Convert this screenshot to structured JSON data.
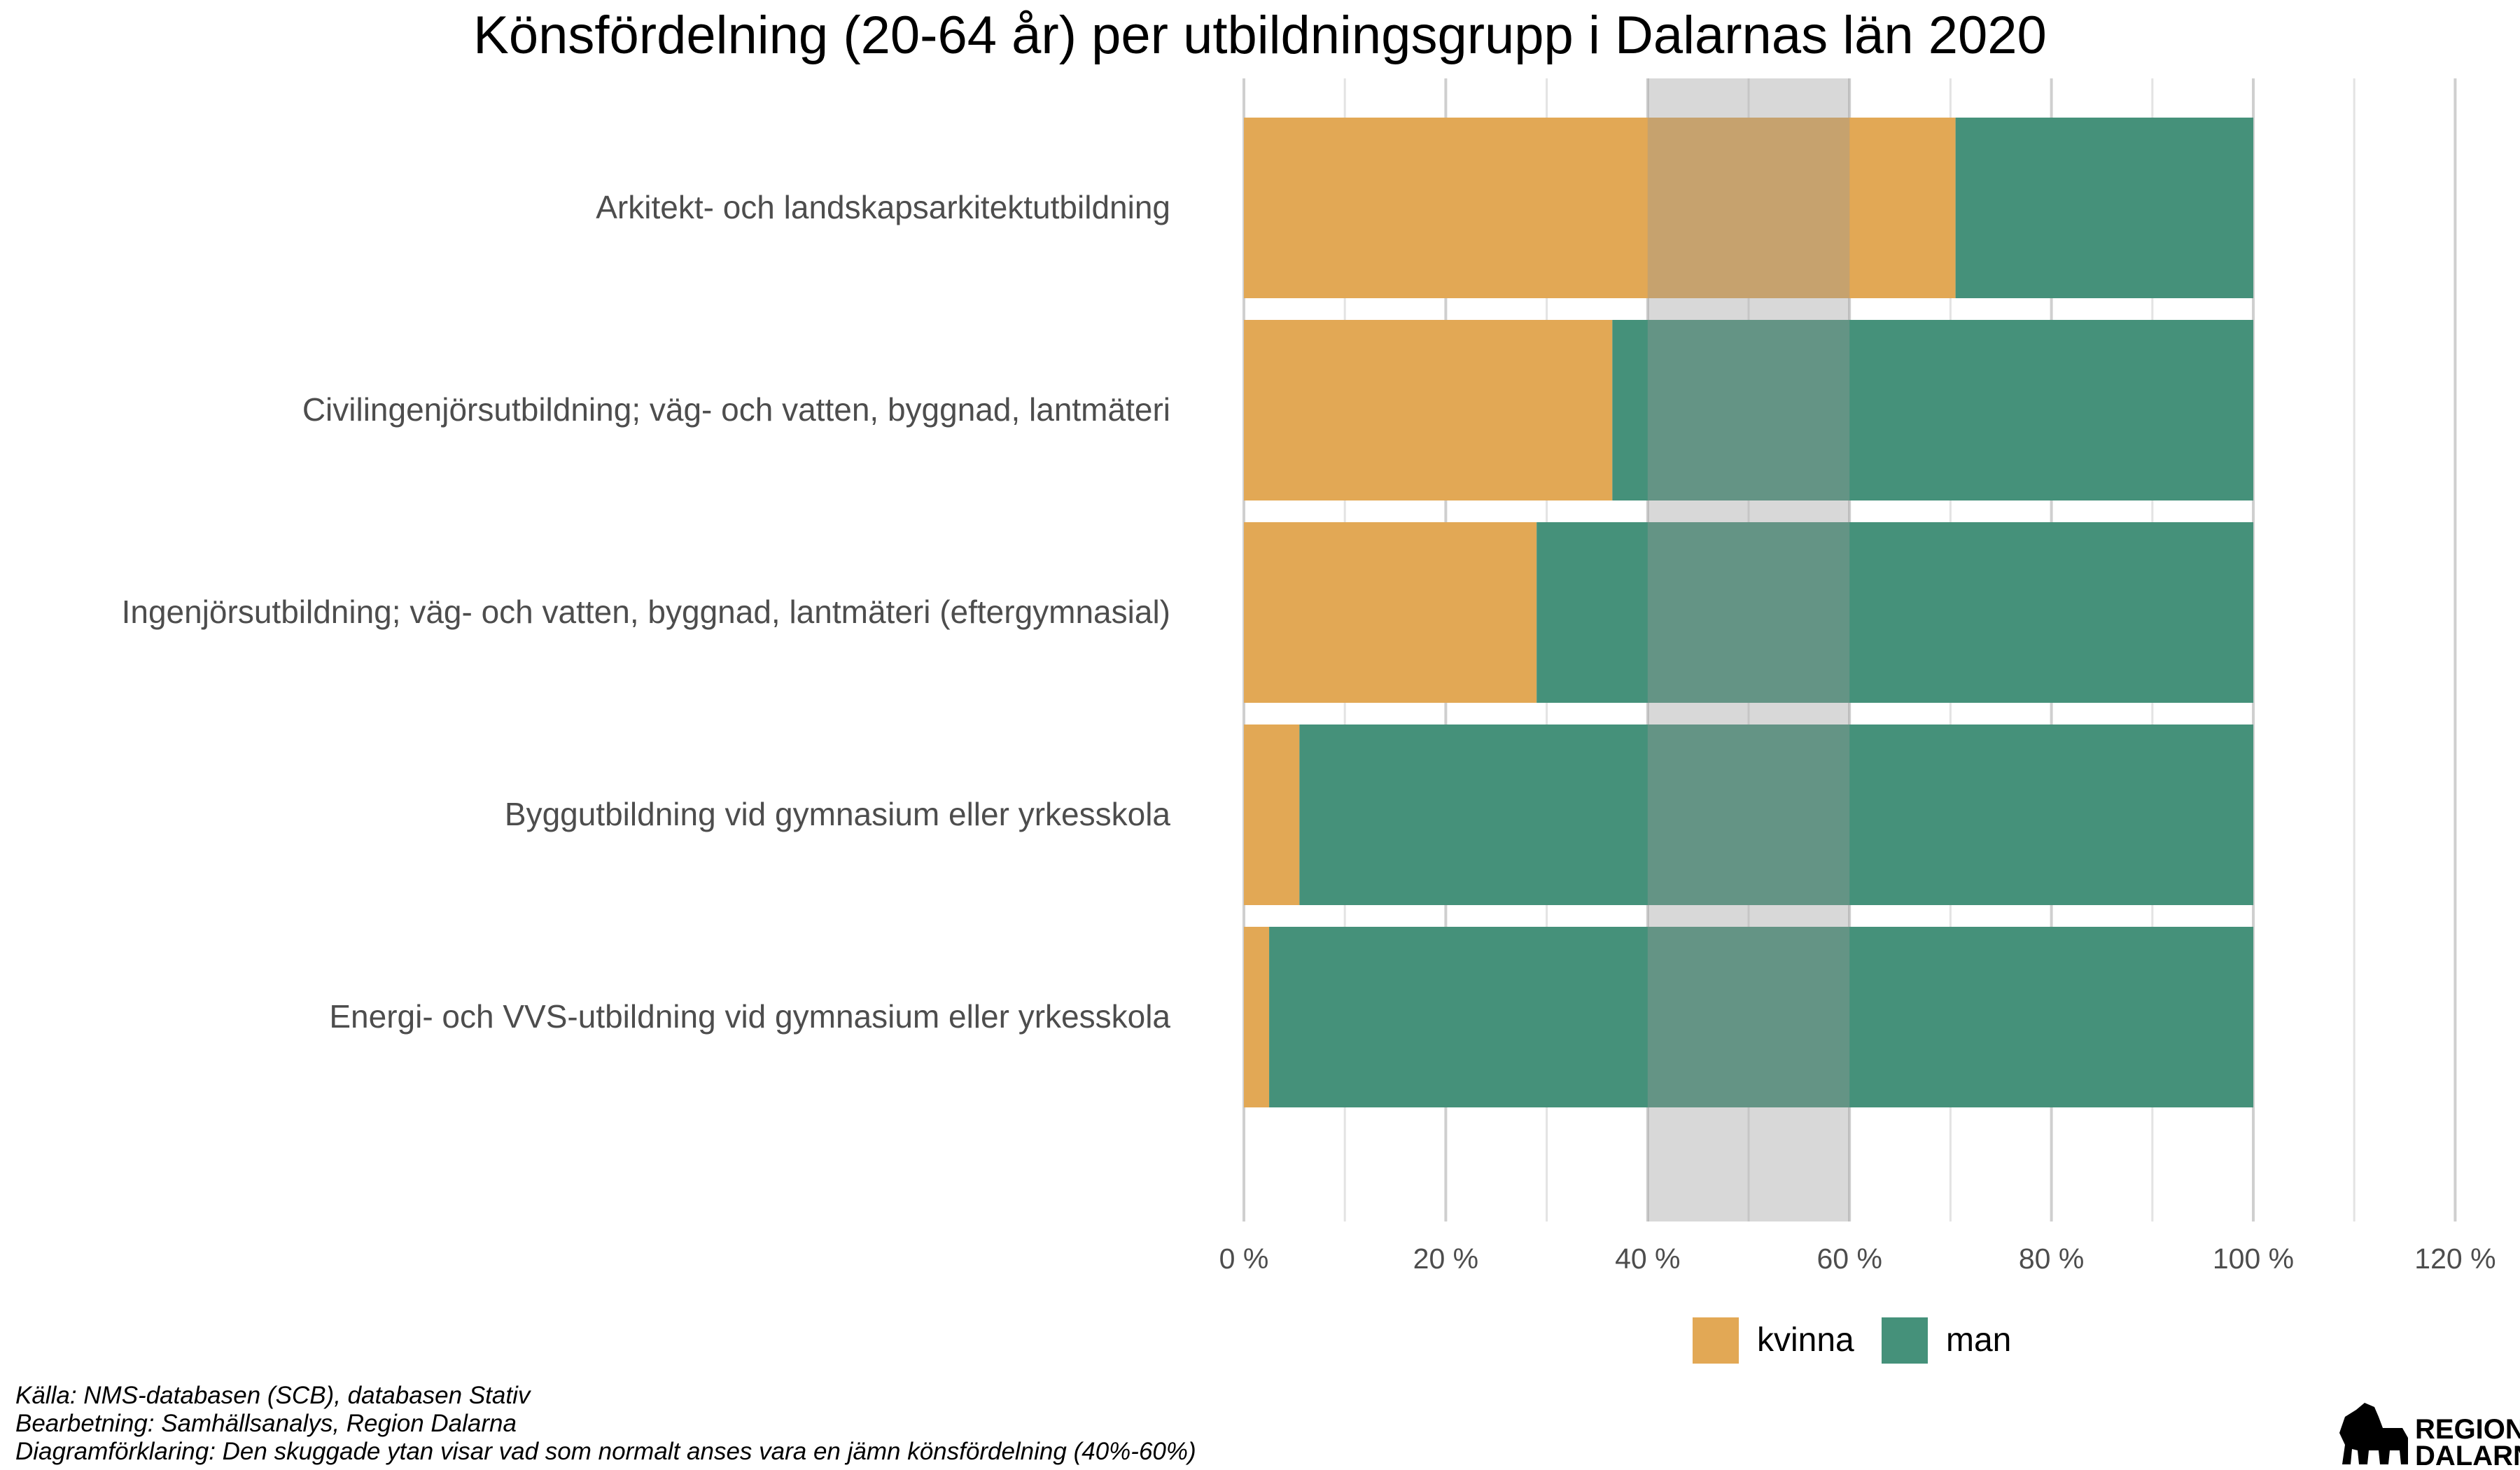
{
  "chart_data": {
    "type": "bar",
    "orientation": "horizontal",
    "stacked": true,
    "title": "Könsfördelning (20-64 år) per utbildningsgrupp i  Dalarnas län 2020",
    "categories": [
      "Arkitekt- och landskapsarkitektutbildning",
      "Civilingenjörsutbildning; väg- och vatten, byggnad, lantmäteri",
      "Ingenjörsutbildning; väg- och vatten, byggnad, lantmäteri (eftergymnasial)",
      "Byggutbildning vid gymnasium eller yrkesskola",
      "Energi- och VVS-utbildning vid gymnasium eller yrkesskola"
    ],
    "series": [
      {
        "name": "kvinna",
        "values": [
          70.5,
          36.5,
          29,
          5.5,
          2.5
        ],
        "color": "#E2A855"
      },
      {
        "name": "man",
        "values": [
          29.5,
          63.5,
          71,
          94.5,
          97.5
        ],
        "color": "#45917A"
      }
    ],
    "xlim": [
      0,
      120
    ],
    "x_ticks": [
      0,
      20,
      40,
      60,
      80,
      100,
      120
    ],
    "x_tick_labels": [
      "0 %",
      "20 %",
      "40 %",
      "60 %",
      "80 %",
      "100 %",
      "120 %"
    ],
    "shaded_band": {
      "from": 40,
      "to": 60,
      "color": "#999999"
    },
    "grid": true,
    "legend_position": "bottom"
  },
  "source_lines": [
    "Källa: NMS-databasen (SCB), databasen Stativ",
    "Bearbetning: Samhällsanalys, Region Dalarna",
    "Diagramförklaring: Den skuggade ytan visar vad som normalt anses vara en jämn könsfördelning (40%-60%)"
  ],
  "logo": {
    "line1": "REGION",
    "line2": "DALARNA"
  }
}
